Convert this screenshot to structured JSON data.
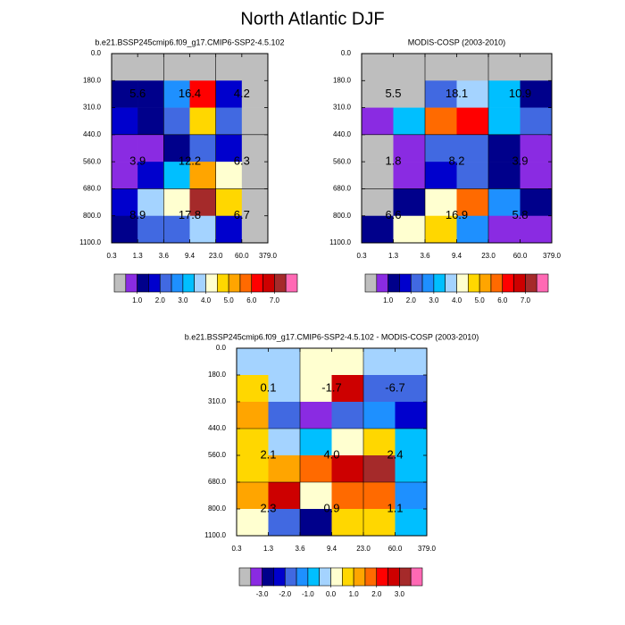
{
  "title": "North Atlantic DJF",
  "chart_data": [
    {
      "type": "heatmap",
      "title": "b.e21.BSSP245cmip6.f09_g17.CMIP6-SSP2-4.5.102",
      "x": [
        "0.3",
        "1.3",
        "3.6",
        "9.4",
        "23.0",
        "60.0",
        "379.0"
      ],
      "y": [
        "0.0",
        "180.0",
        "310.0",
        "440.0",
        "560.0",
        "680.0",
        "800.0",
        "1100.0"
      ],
      "z": [
        [
          0,
          0,
          0,
          0,
          0,
          0
        ],
        [
          1.25,
          1.25,
          2.75,
          6.25,
          1.75,
          0
        ],
        [
          1.75,
          1.25,
          2.25,
          4.75,
          2.25,
          0
        ],
        [
          0.75,
          0.75,
          1.25,
          2.25,
          1.75,
          0
        ],
        [
          0.75,
          1.75,
          3.25,
          5.25,
          4.25,
          0
        ],
        [
          1.75,
          3.75,
          4.25,
          7.25,
          4.75,
          0
        ],
        [
          1.25,
          2.25,
          2.25,
          3.75,
          1.75,
          0
        ]
      ],
      "annotations": [
        [
          "5.6",
          "16.4",
          "4.2"
        ],
        [
          "3.9",
          "12.2",
          "6.3"
        ],
        [
          "8.9",
          "17.8",
          "6.7"
        ]
      ],
      "colors": [
        "#bebebe",
        "#8a2be2",
        "#00008b",
        "#0000cd",
        "#4169e1",
        "#1e90ff",
        "#00bfff",
        "#a4d3ff",
        "#ffffd0",
        "#ffd700",
        "#ffa500",
        "#ff6a00",
        "#ff0000",
        "#cd0000",
        "#a52a2a",
        "#ff69b4"
      ],
      "colorbar_lim": [
        0,
        8
      ],
      "colorbar_ticks": [
        {
          "value": 1,
          "label": "1.0"
        },
        {
          "value": 2,
          "label": "2.0"
        },
        {
          "value": 3,
          "label": "3.0"
        },
        {
          "value": 4,
          "label": "4.0"
        },
        {
          "value": 5,
          "label": "5.0"
        },
        {
          "value": 6,
          "label": "6.0"
        },
        {
          "value": 7,
          "label": "7.0"
        }
      ]
    },
    {
      "type": "heatmap",
      "title": "MODIS-COSP (2003-2010)",
      "x": [
        "0.3",
        "1.3",
        "3.6",
        "9.4",
        "23.0",
        "60.0",
        "379.0"
      ],
      "y": [
        "0.0",
        "180.0",
        "310.0",
        "440.0",
        "560.0",
        "680.0",
        "800.0",
        "1100.0"
      ],
      "z": [
        [
          0,
          0,
          0,
          0,
          0,
          0
        ],
        [
          0,
          0,
          2.25,
          3.75,
          3.25,
          1.25
        ],
        [
          0.75,
          3.25,
          5.75,
          6.25,
          3.25,
          2.25
        ],
        [
          0,
          0.75,
          2.25,
          2.25,
          1.25,
          0.75
        ],
        [
          0,
          0.75,
          1.75,
          2.25,
          1.25,
          0.75
        ],
        [
          0,
          1.25,
          4.25,
          5.75,
          2.75,
          1.25
        ],
        [
          1.25,
          4.25,
          4.75,
          2.75,
          0.75,
          0.75
        ]
      ],
      "annotations": [
        [
          "5.5",
          "18.1",
          "10.9"
        ],
        [
          "1.8",
          "8.2",
          "3.9"
        ],
        [
          "6.6",
          "16.9",
          "5.8"
        ]
      ],
      "colors": [
        "#bebebe",
        "#8a2be2",
        "#00008b",
        "#0000cd",
        "#4169e1",
        "#1e90ff",
        "#00bfff",
        "#a4d3ff",
        "#ffffd0",
        "#ffd700",
        "#ffa500",
        "#ff6a00",
        "#ff0000",
        "#cd0000",
        "#a52a2a",
        "#ff69b4"
      ],
      "colorbar_lim": [
        0,
        8
      ],
      "colorbar_ticks": [
        {
          "value": 1,
          "label": "1.0"
        },
        {
          "value": 2,
          "label": "2.0"
        },
        {
          "value": 3,
          "label": "3.0"
        },
        {
          "value": 4,
          "label": "4.0"
        },
        {
          "value": 5,
          "label": "5.0"
        },
        {
          "value": 6,
          "label": "6.0"
        },
        {
          "value": 7,
          "label": "7.0"
        }
      ]
    },
    {
      "type": "heatmap",
      "title": "b.e21.BSSP245cmip6.f09_g17.CMIP6-SSP2-4.5.102 - MODIS-COSP (2003-2010)",
      "x": [
        "0.3",
        "1.3",
        "3.6",
        "9.4",
        "23.0",
        "60.0",
        "379.0"
      ],
      "y": [
        "0.0",
        "180.0",
        "310.0",
        "440.0",
        "560.0",
        "680.0",
        "800.0",
        "1100.0"
      ],
      "z": [
        [
          -0.25,
          -0.25,
          0.25,
          0.25,
          -0.25,
          -0.25
        ],
        [
          0.75,
          -0.25,
          0.25,
          2.75,
          -1.75,
          -1.75
        ],
        [
          1.25,
          -1.75,
          -3.25,
          -1.75,
          -1.25,
          -2.25
        ],
        [
          0.75,
          -0.25,
          -0.75,
          0.25,
          0.75,
          -0.75
        ],
        [
          0.75,
          1.25,
          1.75,
          2.75,
          3.25,
          -0.75
        ],
        [
          1.25,
          2.75,
          0.25,
          1.75,
          1.75,
          -1.25
        ],
        [
          0.25,
          -1.75,
          -2.75,
          0.75,
          0.75,
          -0.75
        ]
      ],
      "annotations": [
        [
          "0.1",
          "-1.7",
          "-6.7"
        ],
        [
          "2.1",
          "4.0",
          "2.4"
        ],
        [
          "2.3",
          "0.9",
          "1.1"
        ]
      ],
      "colors": [
        "#bebebe",
        "#8a2be2",
        "#00008b",
        "#0000cd",
        "#4169e1",
        "#1e90ff",
        "#00bfff",
        "#a4d3ff",
        "#ffffd0",
        "#ffd700",
        "#ffa500",
        "#ff6a00",
        "#ff0000",
        "#cd0000",
        "#a52a2a",
        "#ff69b4"
      ],
      "colorbar_lim": [
        -4,
        4
      ],
      "colorbar_ticks": [
        {
          "value": -3,
          "label": "-3.0"
        },
        {
          "value": -2,
          "label": "-2.0"
        },
        {
          "value": -1,
          "label": "-1.0"
        },
        {
          "value": 0,
          "label": "0.0"
        },
        {
          "value": 1,
          "label": "1.0"
        },
        {
          "value": 2,
          "label": "2.0"
        },
        {
          "value": 3,
          "label": "3.0"
        }
      ]
    }
  ]
}
